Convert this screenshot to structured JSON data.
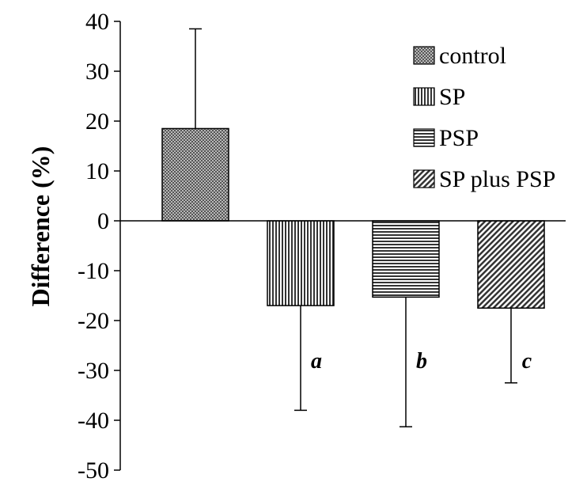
{
  "chart_data": {
    "type": "bar",
    "title": "",
    "xlabel": "",
    "ylabel": "Difference (%)",
    "ylim": [
      -50,
      40
    ],
    "yticks": [
      40,
      30,
      20,
      10,
      0,
      -10,
      -20,
      -30,
      -40,
      -50
    ],
    "grid": false,
    "legend_position": "top-right",
    "categories": [
      "control",
      "SP",
      "PSP",
      "SP plus PSP"
    ],
    "values": [
      18.5,
      -17,
      -15.3,
      -17.5
    ],
    "error": [
      20,
      21,
      26,
      15
    ],
    "error_direction": [
      "up",
      "down",
      "down",
      "down"
    ],
    "significance_labels": [
      "",
      "a",
      "b",
      "c"
    ],
    "patterns": [
      "dots",
      "vertical",
      "horizontal",
      "diagonal"
    ]
  }
}
